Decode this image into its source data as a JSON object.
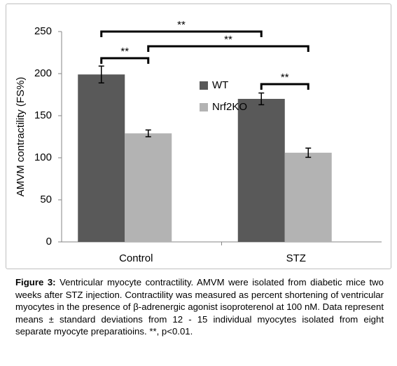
{
  "chart_data": {
    "type": "bar",
    "y_label": "AMVM contractility (FS%)",
    "categories": [
      "Control",
      "STZ"
    ],
    "series": [
      {
        "name": "WT",
        "color": "#595959",
        "values": [
          199,
          170
        ],
        "errors": [
          10,
          7
        ]
      },
      {
        "name": "Nrf2KO",
        "color": "#b3b3b3",
        "values": [
          129,
          106
        ],
        "errors": [
          4,
          5.5
        ]
      }
    ],
    "ylim": [
      0,
      250
    ],
    "yticks": [
      0,
      50,
      100,
      150,
      200,
      250
    ],
    "grid": false,
    "annotations": [
      "**",
      "**",
      "**",
      "**"
    ]
  },
  "caption": {
    "label": "Figure 3:",
    "text": "Ventricular myocyte contractility. AMVM were isolated from diabetic mice two weeks after STZ injection. Contractility was measured as percent shortening of ventricular myocytes in the presence of β-adrenergic agonist isoproterenol at 100 nM. Data represent means ± standard deviations from 12 - 15 individual myocytes isolated from eight separate myocyte preparatioins. **, p<0.01."
  }
}
